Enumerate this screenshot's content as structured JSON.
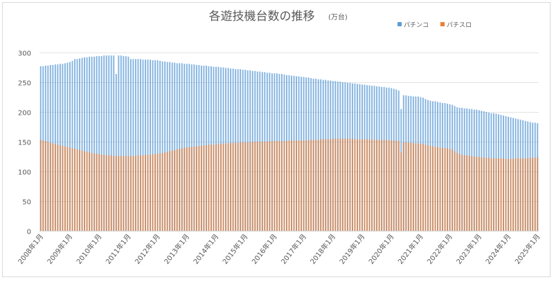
{
  "chart_data": {
    "type": "bar",
    "title": "各遊技機台数の推移",
    "unit_label": "(万台)",
    "xlabel": "",
    "ylabel": "",
    "ylim": [
      0,
      300
    ],
    "yticks": [
      0,
      50,
      100,
      150,
      200,
      250,
      300
    ],
    "ytick_labels": [
      "0",
      "50",
      "100",
      "150",
      "200",
      "250",
      "300"
    ],
    "frequency": "monthly",
    "tick_labels": [
      "2008年1月",
      "2009年1月",
      "2010年1月",
      "2011年1月",
      "2012年1月",
      "2013年1月",
      "2014年1月",
      "2015年1月",
      "2016年1月",
      "2017年1月",
      "2018年1月",
      "2019年1月",
      "2020年1月",
      "2021年1月",
      "2022年1月",
      "2023年1月",
      "2024年1月",
      "2025年1月"
    ],
    "grid": true,
    "legend_position": "top-right",
    "series": [
      {
        "name": "パチンコ",
        "color": "#5b9bd5",
        "values": [
          277,
          277,
          278,
          278,
          279,
          279,
          280,
          280,
          281,
          281,
          282,
          283,
          284,
          286,
          289,
          289,
          290,
          291,
          292,
          292,
          293,
          293,
          293,
          294,
          294,
          294,
          295,
          295,
          295,
          295,
          295,
          264,
          295,
          295,
          294,
          294,
          293,
          289,
          289,
          289,
          289,
          289,
          288,
          288,
          288,
          288,
          287,
          287,
          287,
          286,
          285,
          285,
          284,
          284,
          283,
          283,
          282,
          282,
          282,
          281,
          281,
          281,
          280,
          280,
          279,
          279,
          278,
          278,
          278,
          277,
          277,
          276,
          276,
          276,
          275,
          275,
          274,
          274,
          273,
          273,
          272,
          272,
          272,
          271,
          271,
          270,
          270,
          269,
          269,
          268,
          268,
          267,
          267,
          266,
          266,
          265,
          265,
          265,
          264,
          264,
          263,
          262,
          262,
          261,
          261,
          260,
          260,
          259,
          259,
          258,
          258,
          257,
          256,
          256,
          255,
          255,
          254,
          254,
          253,
          253,
          252,
          252,
          251,
          251,
          250,
          250,
          249,
          249,
          248,
          248,
          247,
          247,
          246,
          246,
          245,
          245,
          244,
          244,
          243,
          243,
          242,
          242,
          241,
          241,
          240,
          239,
          238,
          236,
          205,
          228,
          228,
          227,
          227,
          226,
          226,
          226,
          225,
          224,
          222,
          220,
          219,
          218,
          218,
          217,
          216,
          215,
          215,
          214,
          213,
          212,
          210,
          208,
          207,
          207,
          206,
          206,
          205,
          205,
          204,
          204,
          203,
          202,
          201,
          200,
          199,
          198,
          198,
          197,
          196,
          195,
          194,
          193,
          192,
          191,
          190,
          189,
          188,
          187,
          186,
          185,
          184,
          183,
          182,
          182,
          181
        ]
      },
      {
        "name": "パチスロ",
        "color": "#ed7d31",
        "values": [
          153,
          152,
          151,
          150,
          148,
          147,
          146,
          145,
          144,
          143,
          142,
          141,
          140,
          139,
          138,
          137,
          136,
          135,
          134,
          133,
          132,
          131,
          130,
          130,
          129,
          128,
          128,
          127,
          127,
          127,
          126,
          126,
          126,
          126,
          126,
          126,
          126,
          126,
          126,
          126,
          127,
          127,
          127,
          128,
          128,
          128,
          129,
          129,
          130,
          130,
          131,
          132,
          133,
          134,
          135,
          136,
          137,
          138,
          139,
          140,
          140,
          141,
          141,
          142,
          142,
          143,
          143,
          144,
          144,
          145,
          145,
          145,
          146,
          146,
          146,
          147,
          147,
          147,
          148,
          148,
          148,
          148,
          149,
          149,
          149,
          149,
          149,
          150,
          150,
          150,
          150,
          150,
          150,
          150,
          151,
          151,
          151,
          151,
          151,
          151,
          151,
          151,
          152,
          152,
          152,
          152,
          152,
          152,
          152,
          152,
          153,
          153,
          153,
          153,
          153,
          154,
          154,
          154,
          154,
          154,
          155,
          155,
          155,
          155,
          155,
          155,
          155,
          155,
          155,
          154,
          154,
          154,
          154,
          154,
          154,
          154,
          153,
          153,
          153,
          153,
          153,
          153,
          153,
          152,
          152,
          152,
          152,
          151,
          132,
          149,
          149,
          148,
          148,
          148,
          147,
          147,
          147,
          146,
          145,
          144,
          143,
          142,
          141,
          141,
          140,
          140,
          139,
          139,
          138,
          137,
          134,
          131,
          129,
          128,
          127,
          127,
          126,
          126,
          125,
          125,
          124,
          124,
          123,
          123,
          123,
          122,
          122,
          122,
          122,
          122,
          122,
          121,
          121,
          121,
          121,
          122,
          122,
          122,
          122,
          122,
          122,
          123,
          123,
          123,
          124
        ]
      }
    ]
  }
}
